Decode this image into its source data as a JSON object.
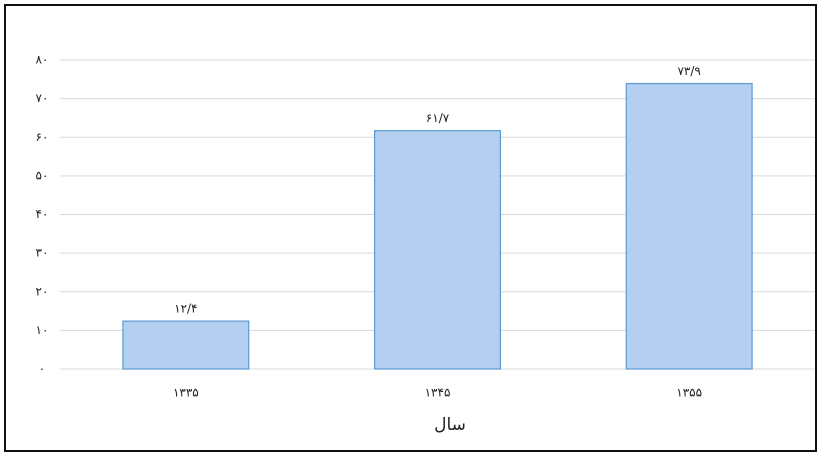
{
  "chart_data": {
    "type": "bar",
    "x_label": "سال",
    "categories": [
      "۱۳۳۵",
      "۱۳۴۵",
      "۱۳۵۵"
    ],
    "values": [
      12.4,
      61.7,
      73.9
    ],
    "value_labels": [
      "۱۲/۴",
      "۶۱/۷",
      "۷۳/۹"
    ],
    "color": "#b4cff0",
    "ylim": [
      0,
      80
    ],
    "yticks": [
      {
        "value": 0,
        "label": "۰"
      },
      {
        "value": 10,
        "label": "۱۰"
      },
      {
        "value": 20,
        "label": "۲۰"
      },
      {
        "value": 30,
        "label": "۳۰"
      },
      {
        "value": 40,
        "label": "۴۰"
      },
      {
        "value": 50,
        "label": "۵۰"
      },
      {
        "value": 60,
        "label": "۶۰"
      },
      {
        "value": 70,
        "label": "۷۰"
      },
      {
        "value": 80,
        "label": "۸۰"
      }
    ],
    "grid": true
  }
}
